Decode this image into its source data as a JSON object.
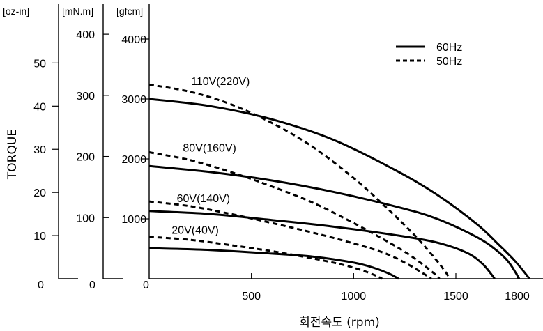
{
  "chart_data": {
    "type": "line",
    "ylabel": "TORQUE",
    "xlabel": "회전속도 (rpm)",
    "xlim": [
      0,
      2100
    ],
    "ylim": [
      0,
      4600
    ],
    "x_ticks": [
      {
        "value": 500,
        "label": "500"
      },
      {
        "value": 1000,
        "label": "1000"
      },
      {
        "value": 1500,
        "label": "1500"
      },
      {
        "value": 1800,
        "label": "1800"
      }
    ],
    "x_zero_label": "0",
    "y_axes": [
      {
        "unit": "[oz-in]",
        "zero_label": "0",
        "ticks": [
          {
            "value": 720,
            "label": "10"
          },
          {
            "value": 1440,
            "label": "20"
          },
          {
            "value": 2160,
            "label": "30"
          },
          {
            "value": 2880,
            "label": "40"
          },
          {
            "value": 3600,
            "label": "50"
          }
        ]
      },
      {
        "unit": "[mN.m]",
        "zero_label": "0",
        "ticks": [
          {
            "value": 1020,
            "label": "100"
          },
          {
            "value": 2040,
            "label": "200"
          },
          {
            "value": 3060,
            "label": "300"
          },
          {
            "value": 4080,
            "label": "400"
          }
        ]
      },
      {
        "unit": "[gfcm]",
        "zero_label": "0",
        "ticks": [
          {
            "value": 1000,
            "label": "1000"
          },
          {
            "value": 2000,
            "label": "2000"
          },
          {
            "value": 3000,
            "label": "3000"
          },
          {
            "value": 4000,
            "label": "4000"
          }
        ]
      }
    ],
    "legend": {
      "position": "top-right",
      "items": [
        {
          "label": "60Hz",
          "style": "solid"
        },
        {
          "label": "50Hz",
          "style": "dashed"
        }
      ]
    },
    "voltage_labels": [
      {
        "text": "110V(220V)",
        "x": 205,
        "y": 3230
      },
      {
        "text": "80V(160V)",
        "x": 165,
        "y": 2120
      },
      {
        "text": "60V(140V)",
        "x": 135,
        "y": 1280
      },
      {
        "text": "20V(40V)",
        "x": 110,
        "y": 750
      }
    ],
    "series": [
      {
        "voltage": "110V(220V)",
        "frequency": "60Hz",
        "style": "solid",
        "x": [
          0,
          300,
          600,
          900,
          1200,
          1400,
          1600,
          1700,
          1780,
          1830,
          1860
        ],
        "y": [
          3000,
          2880,
          2660,
          2320,
          1820,
          1420,
          920,
          600,
          330,
          130,
          0
        ]
      },
      {
        "voltage": "110V(220V)",
        "frequency": "50Hz",
        "style": "dashed",
        "x": [
          0,
          200,
          400,
          600,
          800,
          1000,
          1150,
          1300,
          1400,
          1450,
          1470
        ],
        "y": [
          3240,
          3120,
          2910,
          2600,
          2200,
          1680,
          1220,
          720,
          330,
          110,
          0
        ]
      },
      {
        "voltage": "80V(160V)",
        "frequency": "60Hz",
        "style": "solid",
        "x": [
          0,
          300,
          600,
          900,
          1200,
          1400,
          1600,
          1700,
          1760,
          1810
        ],
        "y": [
          1880,
          1780,
          1640,
          1450,
          1210,
          1010,
          700,
          470,
          270,
          0
        ]
      },
      {
        "voltage": "80V(160V)",
        "frequency": "50Hz",
        "style": "dashed",
        "x": [
          0,
          200,
          400,
          600,
          800,
          1000,
          1150,
          1250,
          1330,
          1400,
          1420
        ],
        "y": [
          2110,
          1980,
          1780,
          1540,
          1270,
          930,
          650,
          450,
          260,
          70,
          0
        ]
      },
      {
        "voltage": "60V(140V)",
        "frequency": "60Hz",
        "style": "solid",
        "x": [
          0,
          300,
          600,
          900,
          1200,
          1400,
          1550,
          1630,
          1690
        ],
        "y": [
          1130,
          1080,
          980,
          870,
          730,
          610,
          440,
          250,
          0
        ]
      },
      {
        "voltage": "60V(140V)",
        "frequency": "50Hz",
        "style": "dashed",
        "x": [
          0,
          200,
          400,
          600,
          800,
          1000,
          1150,
          1250,
          1330,
          1380
        ],
        "y": [
          1290,
          1210,
          1080,
          930,
          770,
          590,
          430,
          270,
          110,
          0
        ]
      },
      {
        "voltage": "20V(40V)",
        "frequency": "60Hz",
        "style": "solid",
        "x": [
          0,
          300,
          600,
          800,
          1000,
          1100,
          1170,
          1220
        ],
        "y": [
          510,
          480,
          420,
          370,
          270,
          180,
          90,
          0
        ]
      },
      {
        "voltage": "20V(40V)",
        "frequency": "50Hz",
        "style": "dashed",
        "x": [
          0,
          200,
          400,
          600,
          800,
          950,
          1050,
          1110,
          1140
        ],
        "y": [
          700,
          650,
          560,
          460,
          340,
          230,
          130,
          50,
          0
        ]
      }
    ]
  }
}
